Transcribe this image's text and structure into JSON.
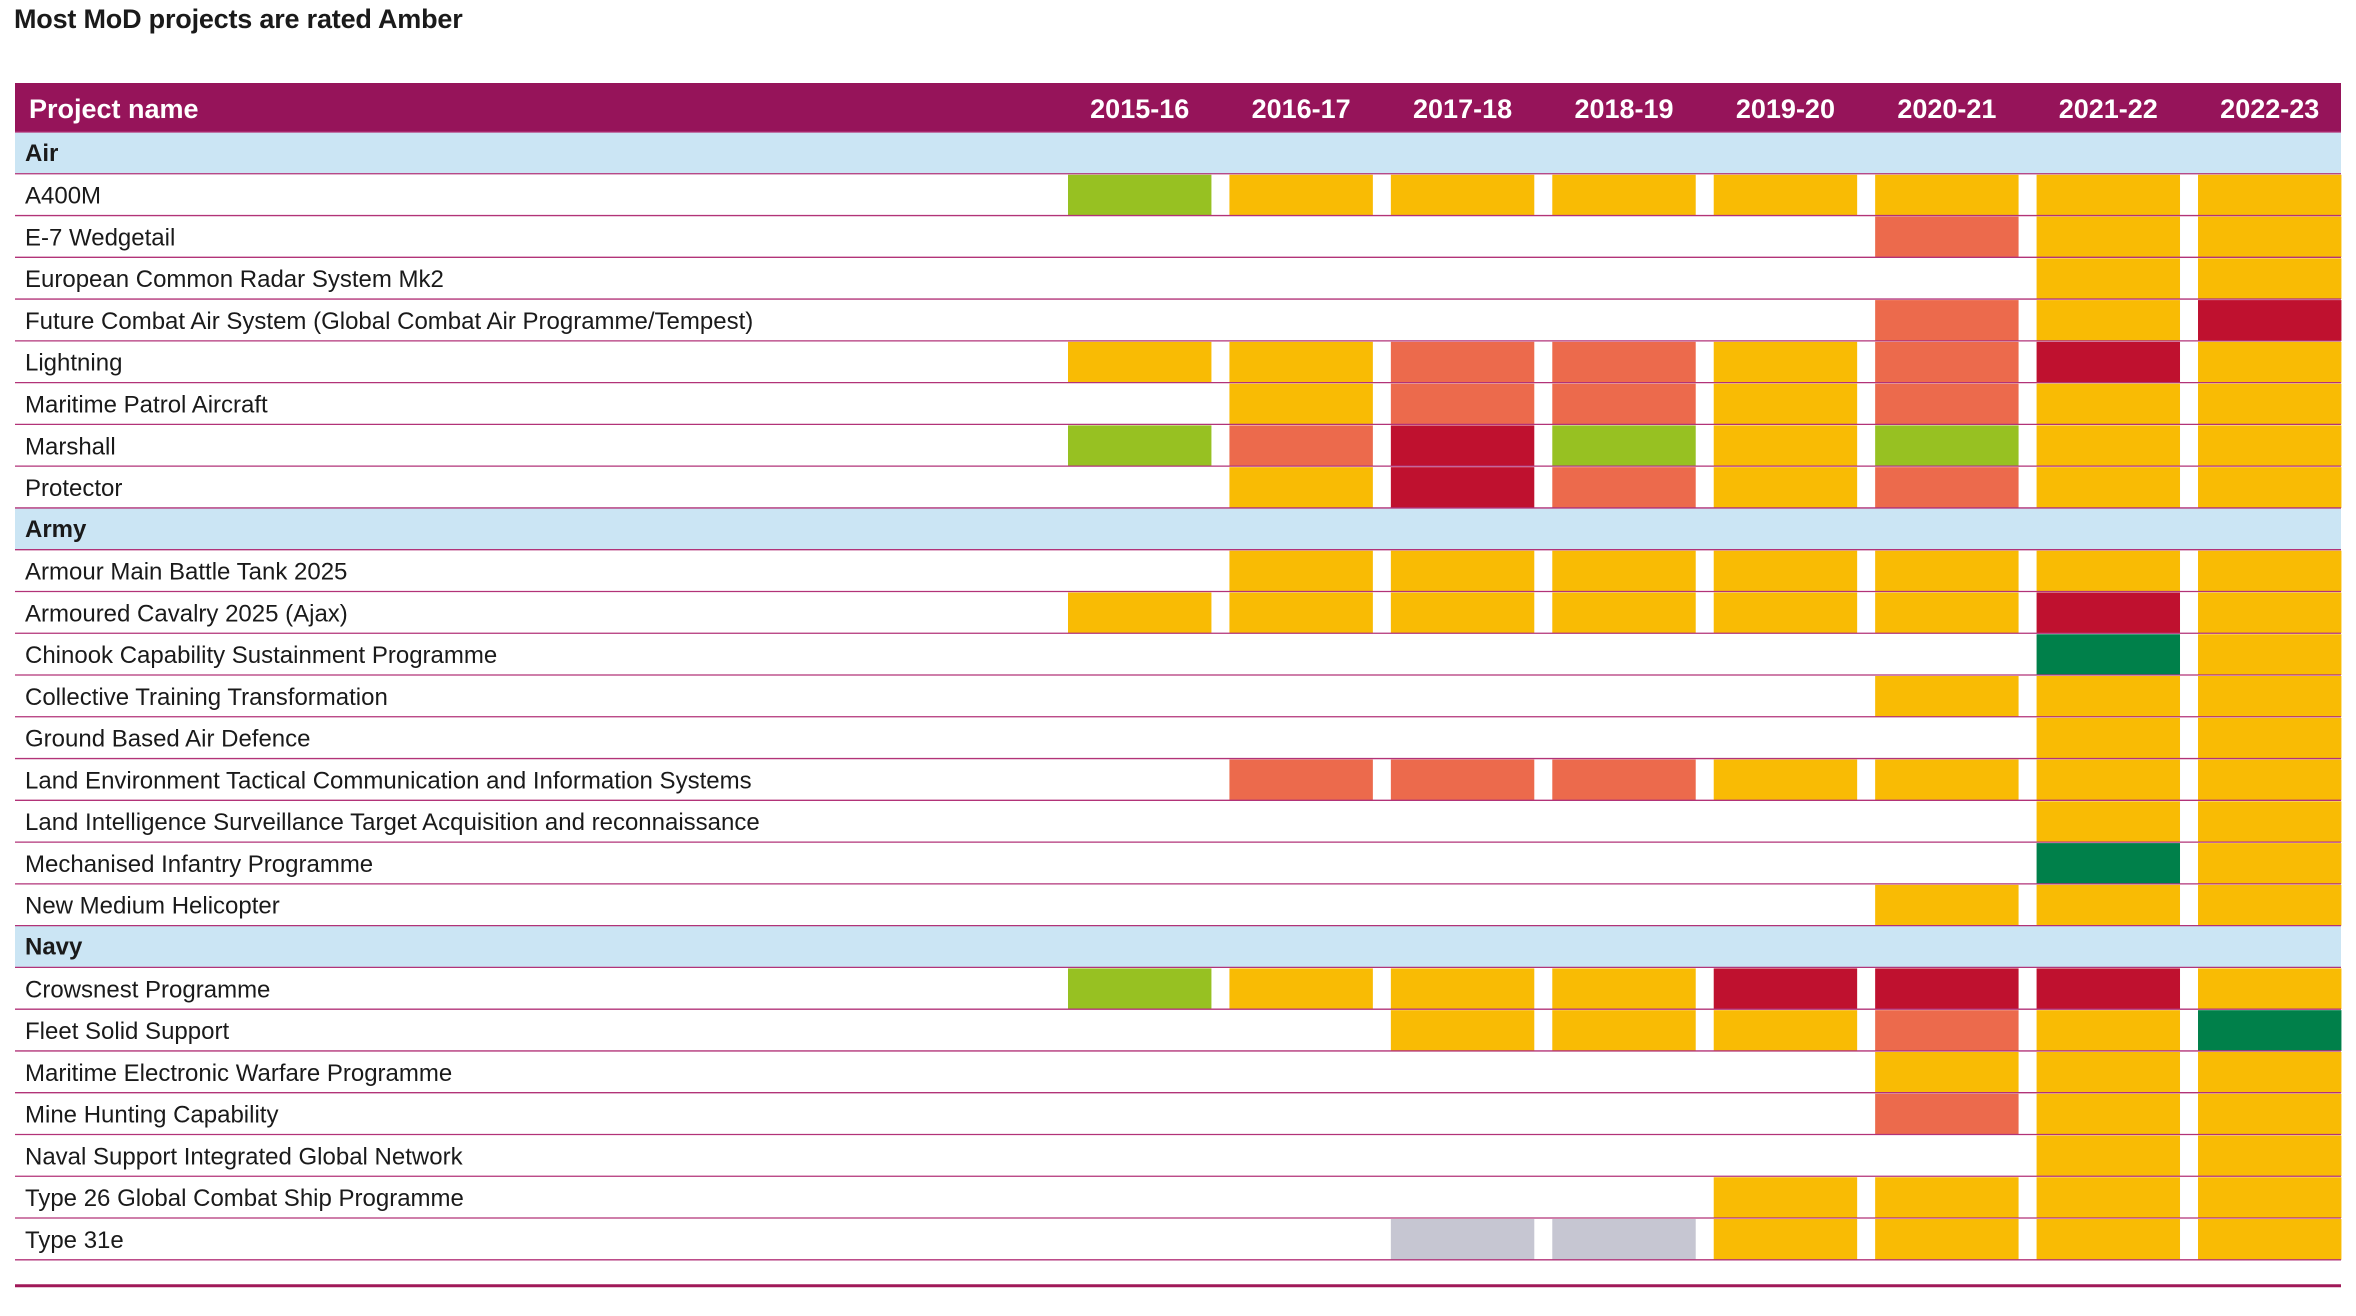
{
  "title": "Most MoD projects are rated Amber",
  "chart_data": {
    "type": "table",
    "title": "Most MoD projects are rated Amber",
    "columns": {
      "name_header": "Project name",
      "years": [
        "2015-16",
        "2016-17",
        "2017-18",
        "2018-19",
        "2019-20",
        "2020-21",
        "2021-22",
        "2022-23"
      ]
    },
    "rating_colors": {
      "green": "#00804a",
      "amber_green": "#97c122",
      "amber": "#f9bb04",
      "amber_red": "#ec6a4c",
      "red": "#bf112f",
      "not_rated": "#c6c6d2"
    },
    "groups": [
      {
        "name": "Air",
        "rows": [
          {
            "name": "A400M",
            "ratings": [
              "amber_green",
              "amber",
              "amber",
              "amber",
              "amber",
              "amber",
              "amber",
              "amber"
            ]
          },
          {
            "name": "E-7 Wedgetail",
            "ratings": [
              null,
              null,
              null,
              null,
              null,
              "amber_red",
              "amber",
              "amber"
            ]
          },
          {
            "name": "European Common Radar System Mk2",
            "ratings": [
              null,
              null,
              null,
              null,
              null,
              null,
              "amber",
              "amber"
            ]
          },
          {
            "name": "Future Combat Air System (Global Combat Air Programme/Tempest)",
            "ratings": [
              null,
              null,
              null,
              null,
              null,
              "amber_red",
              "amber",
              "red"
            ]
          },
          {
            "name": "Lightning",
            "ratings": [
              "amber",
              "amber",
              "amber_red",
              "amber_red",
              "amber",
              "amber_red",
              "red",
              "amber"
            ]
          },
          {
            "name": "Maritime Patrol Aircraft",
            "ratings": [
              null,
              "amber",
              "amber_red",
              "amber_red",
              "amber",
              "amber_red",
              "amber",
              "amber"
            ]
          },
          {
            "name": "Marshall",
            "ratings": [
              "amber_green",
              "amber_red",
              "red",
              "amber_green",
              "amber",
              "amber_green",
              "amber",
              "amber"
            ]
          },
          {
            "name": "Protector",
            "ratings": [
              null,
              "amber",
              "red",
              "amber_red",
              "amber",
              "amber_red",
              "amber",
              "amber"
            ]
          }
        ]
      },
      {
        "name": "Army",
        "rows": [
          {
            "name": "Armour Main Battle Tank 2025",
            "ratings": [
              null,
              "amber",
              "amber",
              "amber",
              "amber",
              "amber",
              "amber",
              "amber"
            ]
          },
          {
            "name": "Armoured Cavalry 2025 (Ajax)",
            "ratings": [
              "amber",
              "amber",
              "amber",
              "amber",
              "amber",
              "amber",
              "red",
              "amber"
            ]
          },
          {
            "name": "Chinook Capability Sustainment Programme",
            "ratings": [
              null,
              null,
              null,
              null,
              null,
              null,
              "green",
              "amber"
            ]
          },
          {
            "name": "Collective Training Transformation",
            "ratings": [
              null,
              null,
              null,
              null,
              null,
              "amber",
              "amber",
              "amber"
            ]
          },
          {
            "name": "Ground Based Air Defence",
            "ratings": [
              null,
              null,
              null,
              null,
              null,
              null,
              "amber",
              "amber"
            ]
          },
          {
            "name": "Land Environment Tactical Communication and Information Systems",
            "ratings": [
              null,
              "amber_red",
              "amber_red",
              "amber_red",
              "amber",
              "amber",
              "amber",
              "amber"
            ]
          },
          {
            "name": "Land Intelligence Surveillance Target Acquisition and reconnaissance",
            "ratings": [
              null,
              null,
              null,
              null,
              null,
              null,
              "amber",
              "amber"
            ]
          },
          {
            "name": "Mechanised Infantry Programme",
            "ratings": [
              null,
              null,
              null,
              null,
              null,
              null,
              "green",
              "amber"
            ]
          },
          {
            "name": "New Medium Helicopter",
            "ratings": [
              null,
              null,
              null,
              null,
              null,
              "amber",
              "amber",
              "amber"
            ]
          }
        ]
      },
      {
        "name": "Navy",
        "rows": [
          {
            "name": "Crowsnest Programme",
            "ratings": [
              "amber_green",
              "amber",
              "amber",
              "amber",
              "red",
              "red",
              "red",
              "amber"
            ]
          },
          {
            "name": "Fleet Solid Support",
            "ratings": [
              null,
              null,
              "amber",
              "amber",
              "amber",
              "amber_red",
              "amber",
              "green"
            ]
          },
          {
            "name": "Maritime Electronic Warfare Programme",
            "ratings": [
              null,
              null,
              null,
              null,
              null,
              "amber",
              "amber",
              "amber"
            ]
          },
          {
            "name": "Mine Hunting Capability",
            "ratings": [
              null,
              null,
              null,
              null,
              null,
              "amber_red",
              "amber",
              "amber"
            ]
          },
          {
            "name": "Naval Support Integrated Global Network",
            "ratings": [
              null,
              null,
              null,
              null,
              null,
              null,
              "amber",
              "amber"
            ]
          },
          {
            "name": "Type 26 Global Combat Ship Programme",
            "ratings": [
              null,
              null,
              null,
              null,
              "amber",
              "amber",
              "amber",
              "amber"
            ]
          },
          {
            "name": "Type 31e",
            "ratings": [
              null,
              null,
              "not_rated",
              "not_rated",
              "amber",
              "amber",
              "amber",
              "amber"
            ]
          }
        ]
      }
    ]
  }
}
